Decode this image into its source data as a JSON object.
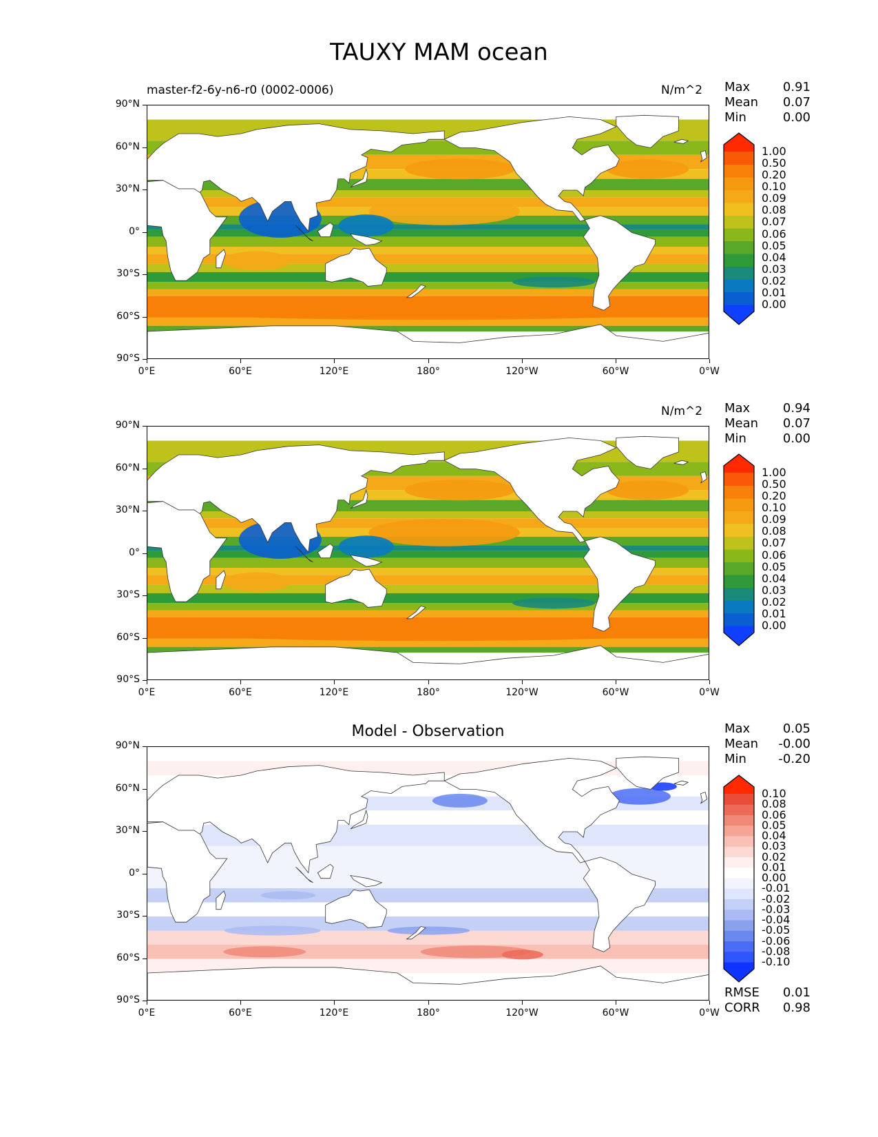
{
  "title": "TAUXY MAM ocean",
  "lat_labels": [
    "90°N",
    "60°N",
    "30°N",
    "0°",
    "30°S",
    "60°S",
    "90°S"
  ],
  "lon_labels": [
    "0°E",
    "60°E",
    "120°E",
    "180°",
    "120°W",
    "60°W",
    "0°W"
  ],
  "panels": [
    {
      "run_label": "master-f2-6y-n6-r0 (0002-0006)",
      "units": "N/m^2",
      "panel_title": "",
      "stats": [
        {
          "name": "Max",
          "value": "0.91"
        },
        {
          "name": "Mean",
          "value": "0.07"
        },
        {
          "name": "Min",
          "value": "0.00"
        }
      ],
      "colorbar_labels": [
        "1.00",
        "0.50",
        "0.20",
        "0.10",
        "0.09",
        "0.08",
        "0.07",
        "0.06",
        "0.05",
        "0.04",
        "0.03",
        "0.02",
        "0.01",
        "0.00"
      ]
    },
    {
      "run_label": "",
      "units": "N/m^2",
      "panel_title": "",
      "stats": [
        {
          "name": "Max",
          "value": "0.94"
        },
        {
          "name": "Mean",
          "value": "0.07"
        },
        {
          "name": "Min",
          "value": "0.00"
        }
      ],
      "colorbar_labels": [
        "1.00",
        "0.50",
        "0.20",
        "0.10",
        "0.09",
        "0.08",
        "0.07",
        "0.06",
        "0.05",
        "0.04",
        "0.03",
        "0.02",
        "0.01",
        "0.00"
      ]
    },
    {
      "run_label": "",
      "units": "",
      "panel_title": "Model - Observation",
      "stats": [
        {
          "name": "Max",
          "value": "0.05"
        },
        {
          "name": "Mean",
          "value": "-0.00"
        },
        {
          "name": "Min",
          "value": "-0.20"
        }
      ],
      "colorbar_labels": [
        "0.10",
        "0.08",
        "0.06",
        "0.05",
        "0.04",
        "0.03",
        "0.02",
        "0.01",
        "0.00",
        "-0.01",
        "-0.02",
        "-0.03",
        "-0.04",
        "-0.05",
        "-0.06",
        "-0.08",
        "-0.10"
      ],
      "metrics": [
        {
          "name": "RMSE",
          "value": "0.01"
        },
        {
          "name": "CORR",
          "value": "0.98"
        }
      ]
    }
  ],
  "colors": {
    "stress_scale": [
      "#1040ff",
      "#0a5fd0",
      "#0a7ac0",
      "#1a8a7a",
      "#2f9a3a",
      "#5aa82a",
      "#8ab81a",
      "#bfc21a",
      "#f0c020",
      "#f5a818",
      "#f59a10",
      "#f88008",
      "#fa5a08",
      "#ff2a00"
    ],
    "diff_scale": [
      "#1034ff",
      "#2f55ff",
      "#4b6df5",
      "#6a88ee",
      "#8aa2ee",
      "#a9bbf2",
      "#c4d0f6",
      "#dfe5fa",
      "#f2f4fd",
      "#ffffff",
      "#fdf0ee",
      "#fcd9d3",
      "#f9c0b6",
      "#f5a496",
      "#f08878",
      "#ec6a58",
      "#e94c38",
      "#ff2a00"
    ]
  }
}
